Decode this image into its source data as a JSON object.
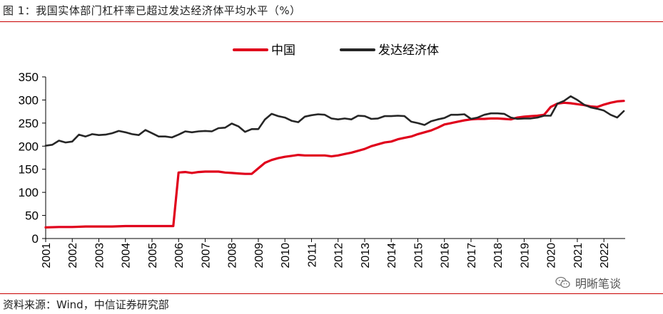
{
  "figure": {
    "title": "图 1：我国实体部门杠杆率已超过发达经济体平均水平（%）",
    "source": "资料来源：Wind，中信证券研究部",
    "watermark": "明晰笔谈",
    "accent_color": "#c80000"
  },
  "chart_data": {
    "type": "line",
    "title": "",
    "xlabel": "",
    "ylabel": "",
    "ylim": [
      0,
      350
    ],
    "yticks": [
      0,
      50,
      100,
      150,
      200,
      250,
      300,
      350
    ],
    "xlim": [
      2001,
      2022.8
    ],
    "xticks": [
      "2001",
      "2002",
      "2003",
      "2004",
      "2005",
      "2006",
      "2007",
      "2008",
      "2009",
      "2010",
      "2011",
      "2012",
      "2013",
      "2014",
      "2015",
      "2016",
      "2017",
      "2018",
      "2019",
      "2020",
      "2021",
      "2022"
    ],
    "legend_position": "top-center",
    "grid": false,
    "series": [
      {
        "name": "中国",
        "color": "#e0001b",
        "points": [
          [
            2001.0,
            24
          ],
          [
            2001.5,
            25
          ],
          [
            2002.0,
            25
          ],
          [
            2002.5,
            26
          ],
          [
            2003.0,
            26
          ],
          [
            2003.5,
            26
          ],
          [
            2004.0,
            27
          ],
          [
            2004.5,
            27
          ],
          [
            2005.0,
            27
          ],
          [
            2005.5,
            27
          ],
          [
            2005.75,
            27
          ],
          [
            2005.8,
            27
          ],
          [
            2006.0,
            143
          ],
          [
            2006.25,
            144
          ],
          [
            2006.5,
            142
          ],
          [
            2006.75,
            144
          ],
          [
            2007.0,
            145
          ],
          [
            2007.25,
            145
          ],
          [
            2007.5,
            145
          ],
          [
            2007.75,
            143
          ],
          [
            2008.0,
            142
          ],
          [
            2008.25,
            141
          ],
          [
            2008.5,
            140
          ],
          [
            2008.75,
            140
          ],
          [
            2009.0,
            152
          ],
          [
            2009.25,
            164
          ],
          [
            2009.5,
            170
          ],
          [
            2009.75,
            174
          ],
          [
            2010.0,
            177
          ],
          [
            2010.25,
            179
          ],
          [
            2010.5,
            181
          ],
          [
            2010.75,
            180
          ],
          [
            2011.0,
            180
          ],
          [
            2011.25,
            180
          ],
          [
            2011.5,
            180
          ],
          [
            2011.75,
            178
          ],
          [
            2012.0,
            180
          ],
          [
            2012.25,
            183
          ],
          [
            2012.5,
            186
          ],
          [
            2012.75,
            190
          ],
          [
            2013.0,
            194
          ],
          [
            2013.25,
            200
          ],
          [
            2013.5,
            204
          ],
          [
            2013.75,
            208
          ],
          [
            2014.0,
            210
          ],
          [
            2014.25,
            215
          ],
          [
            2014.5,
            218
          ],
          [
            2014.75,
            221
          ],
          [
            2015.0,
            226
          ],
          [
            2015.25,
            230
          ],
          [
            2015.5,
            234
          ],
          [
            2015.75,
            240
          ],
          [
            2016.0,
            247
          ],
          [
            2016.25,
            250
          ],
          [
            2016.5,
            253
          ],
          [
            2016.75,
            256
          ],
          [
            2017.0,
            258
          ],
          [
            2017.25,
            259
          ],
          [
            2017.5,
            259
          ],
          [
            2017.75,
            260
          ],
          [
            2018.0,
            260
          ],
          [
            2018.25,
            259
          ],
          [
            2018.5,
            258
          ],
          [
            2018.75,
            262
          ],
          [
            2019.0,
            264
          ],
          [
            2019.25,
            265
          ],
          [
            2019.5,
            266
          ],
          [
            2019.75,
            268
          ],
          [
            2020.0,
            285
          ],
          [
            2020.25,
            292
          ],
          [
            2020.5,
            294
          ],
          [
            2020.75,
            293
          ],
          [
            2021.0,
            291
          ],
          [
            2021.25,
            289
          ],
          [
            2021.5,
            286
          ],
          [
            2021.75,
            285
          ],
          [
            2022.0,
            290
          ],
          [
            2022.25,
            294
          ],
          [
            2022.5,
            297
          ],
          [
            2022.75,
            298
          ]
        ]
      },
      {
        "name": "发达经济体",
        "color": "#262626",
        "points": [
          [
            2001.0,
            201
          ],
          [
            2001.25,
            203
          ],
          [
            2001.5,
            212
          ],
          [
            2001.75,
            208
          ],
          [
            2002.0,
            210
          ],
          [
            2002.25,
            225
          ],
          [
            2002.5,
            221
          ],
          [
            2002.75,
            226
          ],
          [
            2003.0,
            224
          ],
          [
            2003.25,
            225
          ],
          [
            2003.5,
            228
          ],
          [
            2003.75,
            233
          ],
          [
            2004.0,
            230
          ],
          [
            2004.25,
            226
          ],
          [
            2004.5,
            224
          ],
          [
            2004.75,
            235
          ],
          [
            2005.0,
            228
          ],
          [
            2005.25,
            221
          ],
          [
            2005.5,
            221
          ],
          [
            2005.75,
            219
          ],
          [
            2006.0,
            225
          ],
          [
            2006.25,
            232
          ],
          [
            2006.5,
            230
          ],
          [
            2006.75,
            232
          ],
          [
            2007.0,
            233
          ],
          [
            2007.25,
            232
          ],
          [
            2007.5,
            239
          ],
          [
            2007.75,
            240
          ],
          [
            2008.0,
            249
          ],
          [
            2008.25,
            243
          ],
          [
            2008.5,
            231
          ],
          [
            2008.75,
            237
          ],
          [
            2009.0,
            237
          ],
          [
            2009.25,
            258
          ],
          [
            2009.5,
            270
          ],
          [
            2009.75,
            265
          ],
          [
            2010.0,
            262
          ],
          [
            2010.25,
            255
          ],
          [
            2010.5,
            252
          ],
          [
            2010.75,
            264
          ],
          [
            2011.0,
            267
          ],
          [
            2011.25,
            269
          ],
          [
            2011.5,
            268
          ],
          [
            2011.75,
            260
          ],
          [
            2012.0,
            258
          ],
          [
            2012.25,
            260
          ],
          [
            2012.5,
            258
          ],
          [
            2012.75,
            266
          ],
          [
            2013.0,
            265
          ],
          [
            2013.25,
            259
          ],
          [
            2013.5,
            260
          ],
          [
            2013.75,
            265
          ],
          [
            2014.0,
            265
          ],
          [
            2014.25,
            266
          ],
          [
            2014.5,
            265
          ],
          [
            2014.75,
            253
          ],
          [
            2015.0,
            250
          ],
          [
            2015.25,
            246
          ],
          [
            2015.5,
            254
          ],
          [
            2015.75,
            258
          ],
          [
            2016.0,
            261
          ],
          [
            2016.25,
            268
          ],
          [
            2016.5,
            268
          ],
          [
            2016.75,
            269
          ],
          [
            2017.0,
            259
          ],
          [
            2017.25,
            262
          ],
          [
            2017.5,
            268
          ],
          [
            2017.75,
            271
          ],
          [
            2018.0,
            271
          ],
          [
            2018.25,
            270
          ],
          [
            2018.5,
            262
          ],
          [
            2018.75,
            259
          ],
          [
            2019.0,
            260
          ],
          [
            2019.25,
            260
          ],
          [
            2019.5,
            262
          ],
          [
            2019.75,
            266
          ],
          [
            2020.0,
            266
          ],
          [
            2020.25,
            292
          ],
          [
            2020.5,
            298
          ],
          [
            2020.75,
            308
          ],
          [
            2021.0,
            300
          ],
          [
            2021.25,
            290
          ],
          [
            2021.5,
            284
          ],
          [
            2021.75,
            281
          ],
          [
            2022.0,
            277
          ],
          [
            2022.25,
            268
          ],
          [
            2022.5,
            262
          ],
          [
            2022.75,
            276
          ]
        ]
      }
    ]
  }
}
